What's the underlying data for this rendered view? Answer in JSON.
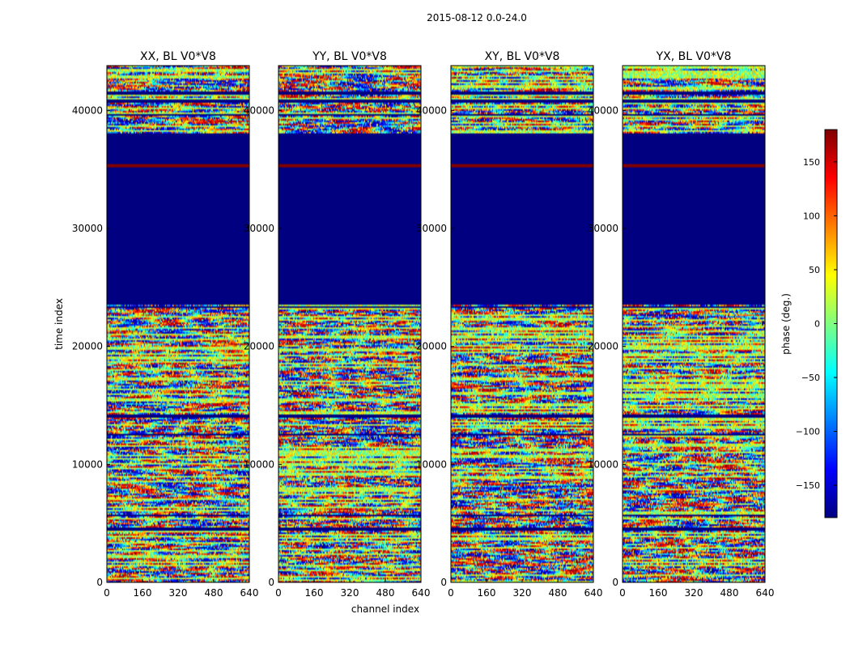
{
  "chart_data": {
    "type": "heatmap",
    "suptitle": "2015-08-12 0.0-24.0",
    "xlabel": "channel index",
    "ylabel": "time index",
    "xlim": [
      0,
      640
    ],
    "ylim": [
      0,
      43800
    ],
    "xticks": [
      "0",
      "160",
      "320",
      "480",
      "640"
    ],
    "yticks": [
      "0",
      "10000",
      "20000",
      "30000",
      "40000"
    ],
    "panels": [
      {
        "title": "XX, BL V0*V8",
        "seed": 11
      },
      {
        "title": "YY, BL V0*V8",
        "seed": 23
      },
      {
        "title": "XY, BL V0*V8",
        "seed": 37
      },
      {
        "title": "YX, BL V0*V8",
        "seed": 53
      }
    ],
    "flagged_time_ranges": [
      [
        23500,
        38000
      ],
      [
        23250,
        23450
      ],
      [
        14000,
        14250
      ],
      [
        12400,
        12550
      ],
      [
        5600,
        5800
      ],
      [
        4400,
        4600
      ],
      [
        40700,
        40950
      ],
      [
        41400,
        41550
      ],
      [
        39600,
        39700
      ]
    ],
    "flag_value_deg": -180,
    "hot_line_time": 35300,
    "hot_line_value_deg": 180,
    "colorbar": {
      "label": "phase (deg.)",
      "range": [
        -180,
        180
      ],
      "ticks": [
        "150",
        "100",
        "50",
        "0",
        "−50",
        "−100",
        "−150"
      ],
      "tick_values": [
        150,
        100,
        50,
        0,
        -50,
        -100,
        -150
      ],
      "colormap": "jet"
    }
  }
}
